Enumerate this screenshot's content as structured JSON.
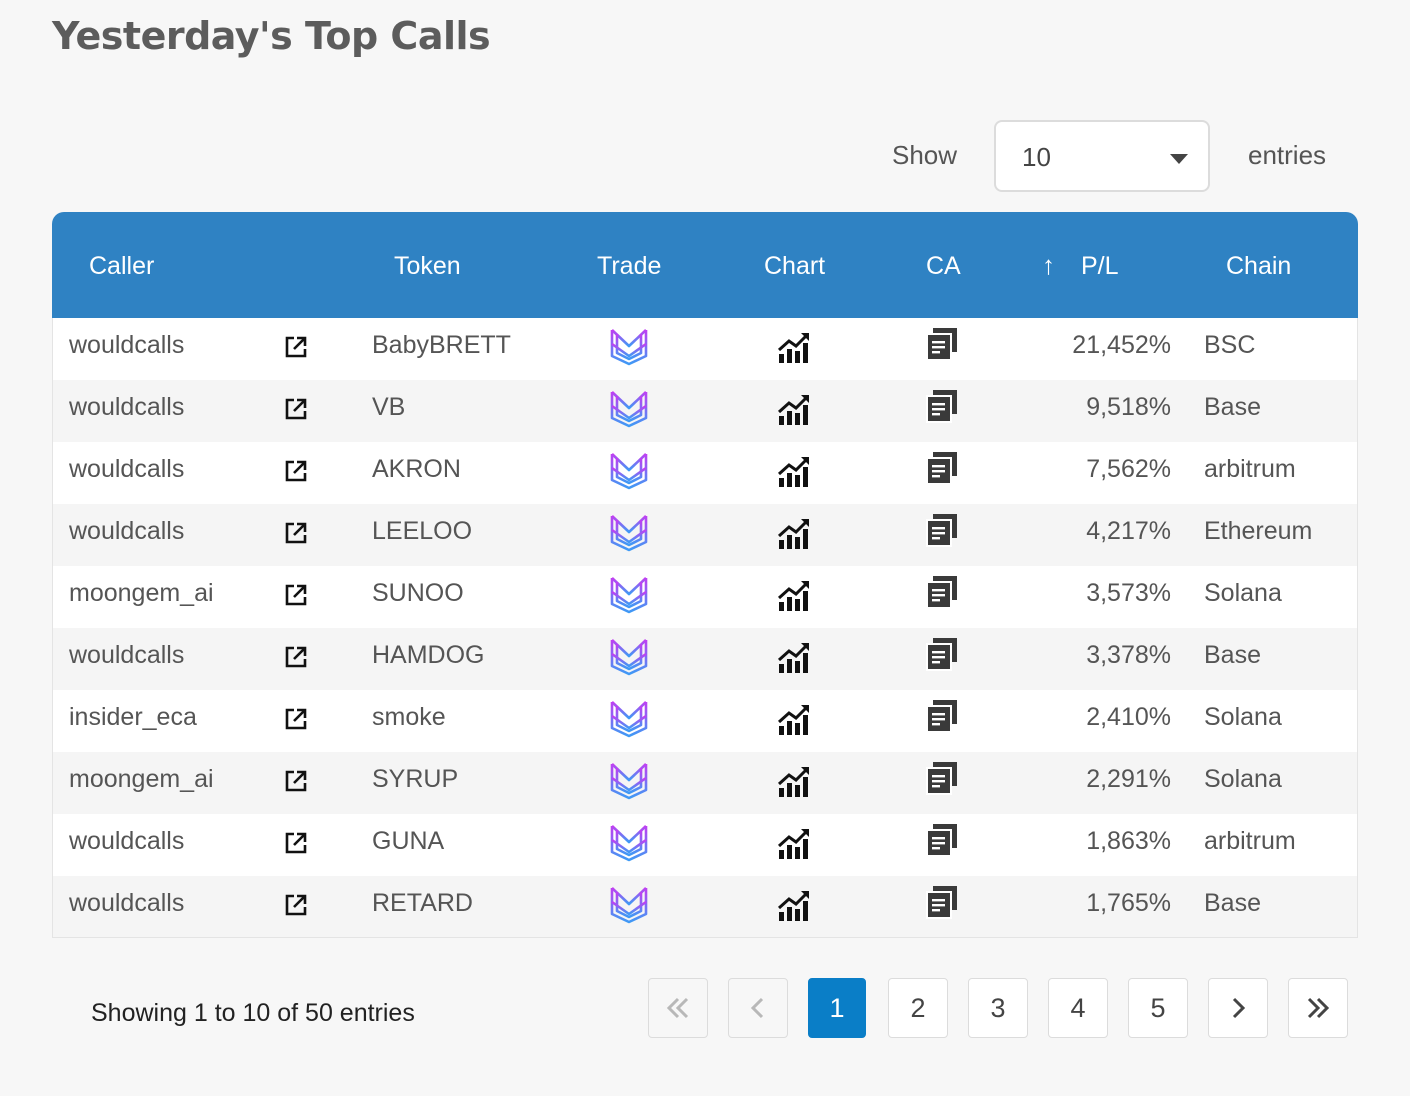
{
  "page": {
    "title": "Yesterday's Top Calls"
  },
  "length_control": {
    "show_label": "Show",
    "selected": "10",
    "entries_label": "entries"
  },
  "table": {
    "headers": {
      "caller": "Caller",
      "token": "Token",
      "trade": "Trade",
      "chart": "Chart",
      "ca": "CA",
      "pl": "P/L",
      "chain": "Chain"
    },
    "sorted_column": "pl",
    "sort_direction": "descending",
    "rows": [
      {
        "caller": "wouldcalls",
        "token": "BabyBRETT",
        "pl": "21,452%",
        "chain": "BSC"
      },
      {
        "caller": "wouldcalls",
        "token": "VB",
        "pl": "9,518%",
        "chain": "Base"
      },
      {
        "caller": "wouldcalls",
        "token": "AKRON",
        "pl": "7,562%",
        "chain": "arbitrum"
      },
      {
        "caller": "wouldcalls",
        "token": "LEELOO",
        "pl": "4,217%",
        "chain": "Ethereum"
      },
      {
        "caller": "moongem_ai",
        "token": "SUNOO",
        "pl": "3,573%",
        "chain": "Solana"
      },
      {
        "caller": "wouldcalls",
        "token": "HAMDOG",
        "pl": "3,378%",
        "chain": "Base"
      },
      {
        "caller": "insider_eca",
        "token": "smoke",
        "pl": "2,410%",
        "chain": "Solana"
      },
      {
        "caller": "moongem_ai",
        "token": "SYRUP",
        "pl": "2,291%",
        "chain": "Solana"
      },
      {
        "caller": "wouldcalls",
        "token": "GUNA",
        "pl": "1,863%",
        "chain": "arbitrum"
      },
      {
        "caller": "wouldcalls",
        "token": "RETARD",
        "pl": "1,765%",
        "chain": "Base"
      }
    ],
    "row_icons": {
      "caller_link": "external-link-icon",
      "trade": "trade-logo-icon",
      "chart": "chart-growth-icon",
      "ca": "copy-icon"
    }
  },
  "info": {
    "text": "Showing 1 to 10 of 50 entries"
  },
  "pagination": {
    "pages": [
      "1",
      "2",
      "3",
      "4",
      "5"
    ],
    "current": "1",
    "icons": {
      "first": "double-chevron-left-icon",
      "prev": "chevron-left-icon",
      "next": "chevron-right-icon",
      "last": "double-chevron-right-icon"
    }
  },
  "colors": {
    "header_bg": "#2f82c3",
    "active_page": "#0a7ec7",
    "trade_logo_top": "#c23ef2",
    "trade_logo_bottom": "#3e9af5"
  }
}
